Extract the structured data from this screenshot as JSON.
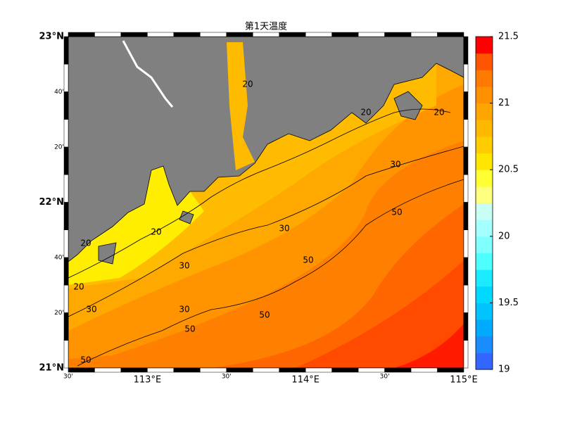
{
  "title": "第1天温度",
  "lat_labels": [
    "23°N",
    "40'",
    "20'",
    "22°N",
    "40'",
    "20'",
    "21°N"
  ],
  "lon_labels": [
    "30'",
    "113°E",
    "30'",
    "114°E",
    "30'",
    "115°E"
  ],
  "contour_labels": [
    "20",
    "30",
    "50"
  ],
  "colorbar": {
    "lim": [
      19,
      21.5
    ],
    "ticks": [
      19,
      19.5,
      20,
      20.5,
      21,
      21.5
    ],
    "colors": [
      "#3366ff",
      "#1a8cff",
      "#00aaff",
      "#00c3ff",
      "#00d9ff",
      "#1aebff",
      "#4dffff",
      "#80ffff",
      "#a6ffff",
      "#c8fff4",
      "#ffff80",
      "#ffff33",
      "#ffe600",
      "#ffcc00",
      "#ffb800",
      "#ffa500",
      "#ff9000",
      "#ff7a00",
      "#ff5500",
      "#ff0000"
    ]
  }
}
